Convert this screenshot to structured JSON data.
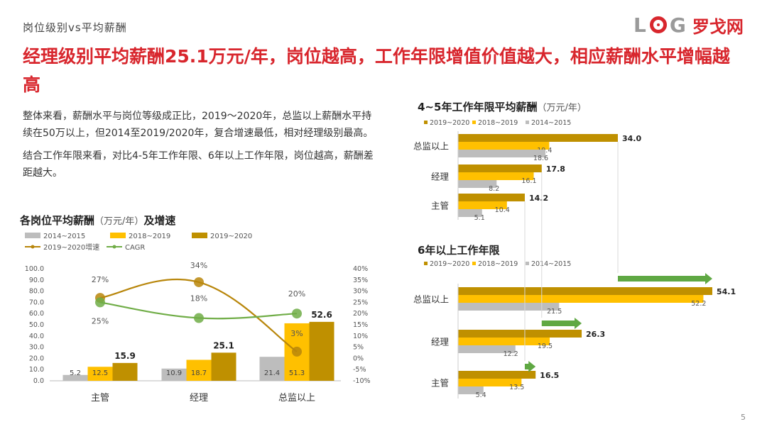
{
  "section_label": "岗位级别vs平均薪酬",
  "logo": {
    "letters": "LOG",
    "cn": "罗戈网"
  },
  "headline": "经理级别平均薪酬25.1万元/年，岗位越高，工作年限增值价值越大，相应薪酬水平增幅越高",
  "body_paragraphs": [
    "整体来看，薪酬水平与岗位等级成正比，2019～2020年，总监以上薪酬水平持续在50万以上，但2014至2019/2020年，复合增速最低，相对经理级别最高。",
    "结合工作年限来看，对比4-5年工作年限、6年以上工作年限，岗位越高，薪酬差距越大。"
  ],
  "page_number": "5",
  "colors": {
    "c2014": "#bdbdbd",
    "c2018": "#ffc000",
    "c2019": "#bf9000",
    "growth_line": "#b8860b",
    "cagr_line": "#70ad47",
    "accent_red": "#d8262d",
    "arrow_green": "#5fa843"
  },
  "chart_data": [
    {
      "id": "left",
      "type": "bar",
      "title": "各岗位平均薪酬",
      "unit": "（万元/年）",
      "title_suffix": "及增速",
      "categories": [
        "主管",
        "经理",
        "总监以上"
      ],
      "series": [
        {
          "name": "2014~2015",
          "values": [
            5.2,
            10.9,
            21.4
          ]
        },
        {
          "name": "2018~2019",
          "values": [
            12.5,
            18.7,
            51.3
          ]
        },
        {
          "name": "2019~2020",
          "values": [
            15.9,
            25.1,
            52.6
          ]
        }
      ],
      "line_series": [
        {
          "name": "2019~2020增速",
          "values": [
            27,
            34,
            3
          ],
          "labels": [
            "27%",
            "34%",
            "3%"
          ]
        },
        {
          "name": "CAGR",
          "values": [
            25,
            18,
            20
          ],
          "labels": [
            "25%",
            "18%",
            "20%"
          ]
        }
      ],
      "ylim": [
        0,
        100
      ],
      "yticks": [
        "100.0",
        "90.0",
        "80.0",
        "70.0",
        "60.0",
        "50.0",
        "40.0",
        "30.0",
        "20.0",
        "10.0",
        "0.0"
      ],
      "y2lim": [
        -10,
        40
      ],
      "y2ticks": [
        "40%",
        "35%",
        "30%",
        "25%",
        "20%",
        "15%",
        "10%",
        "5%",
        "0%",
        "-5%",
        "-10%"
      ],
      "legend_position": "top-left"
    },
    {
      "id": "right-top",
      "type": "bar",
      "orientation": "horizontal",
      "title": "4~5年工作年限平均薪酬",
      "unit": "（万元/年）",
      "categories": [
        "总监以上",
        "经理",
        "主管"
      ],
      "series": [
        {
          "name": "2019~2020",
          "values": [
            34.0,
            17.8,
            14.2
          ],
          "labels": [
            "34.0",
            "17.8",
            "14.2"
          ]
        },
        {
          "name": "2018~2019",
          "values": [
            19.4,
            16.1,
            10.4
          ],
          "labels": [
            "19.4",
            "16.1",
            "10.4"
          ]
        },
        {
          "name": "2014~2015",
          "values": [
            18.6,
            8.2,
            5.1
          ],
          "labels": [
            "18.6",
            "8.2",
            "5.1"
          ]
        }
      ],
      "legend_position": "top"
    },
    {
      "id": "right-bottom",
      "type": "bar",
      "orientation": "horizontal",
      "title": "6年以上工作年限",
      "categories": [
        "总监以上",
        "经理",
        "主管"
      ],
      "series": [
        {
          "name": "2019~2020",
          "values": [
            54.1,
            26.3,
            16.5
          ],
          "labels": [
            "54.1",
            "26.3",
            "16.5"
          ]
        },
        {
          "name": "2018~2019",
          "values": [
            52.2,
            19.5,
            13.5
          ],
          "labels": [
            "52.2",
            "19.5",
            "13.5"
          ]
        },
        {
          "name": "2014~2015",
          "values": [
            21.5,
            12.2,
            5.4
          ],
          "labels": [
            "21.5",
            "12.2",
            "5.4"
          ]
        }
      ],
      "legend_position": "top"
    }
  ]
}
